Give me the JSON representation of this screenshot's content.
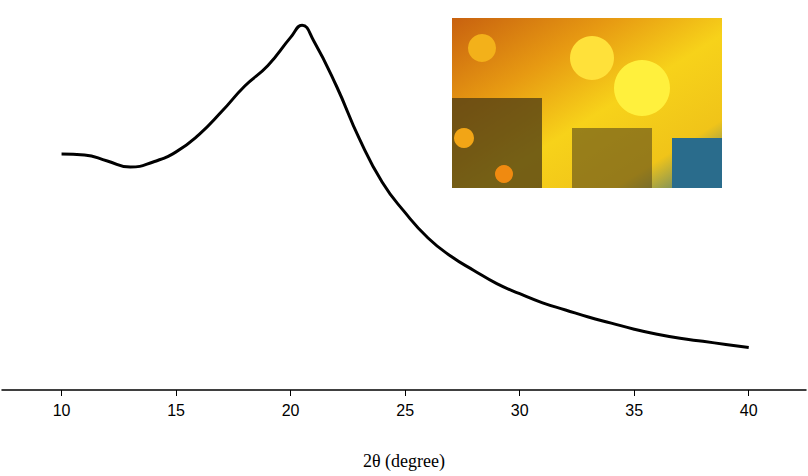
{
  "chart_data": {
    "type": "line",
    "x_label": "2θ (degree)",
    "x": [
      10,
      11,
      12,
      13,
      14,
      15,
      16,
      17,
      18,
      19,
      20,
      20.5,
      21,
      22,
      23,
      24,
      25,
      26,
      27,
      28,
      29,
      30,
      31,
      32,
      33,
      34,
      35,
      36,
      37,
      38,
      39,
      40
    ],
    "values": [
      233,
      232,
      226,
      220,
      225,
      235,
      252,
      275,
      300,
      320,
      348,
      360,
      345,
      300,
      248,
      205,
      175,
      150,
      132,
      118,
      105,
      95,
      86,
      79,
      72,
      66,
      60,
      55,
      51,
      48,
      45,
      42
    ],
    "color": "#000000",
    "xlim": [
      7.4,
      42.5
    ],
    "xticks": [
      10,
      15,
      20,
      25,
      30,
      35,
      40
    ],
    "ylim": [
      0,
      375
    ],
    "tick_labels": "x",
    "grid": false
  }
}
